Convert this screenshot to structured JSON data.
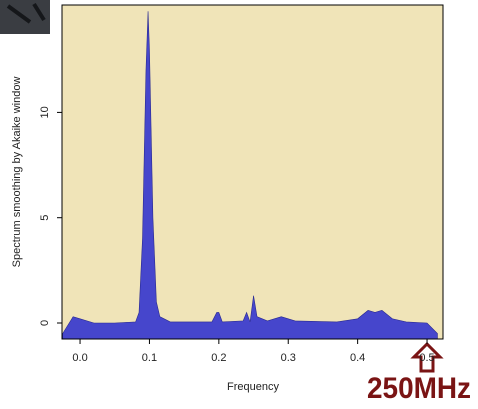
{
  "chart_data": {
    "type": "area",
    "y_label": "Spectrum smoothing by Akaike window",
    "x_label": "Frequency",
    "annotation": "250MHz",
    "color": "#4646cc",
    "background": "#f0e4b8",
    "x": [
      -0.025,
      -0.01,
      0.0,
      0.02,
      0.05,
      0.08,
      0.085,
      0.09,
      0.095,
      0.098,
      0.1,
      0.105,
      0.11,
      0.115,
      0.13,
      0.19,
      0.197,
      0.2,
      0.205,
      0.235,
      0.24,
      0.245,
      0.25,
      0.255,
      0.27,
      0.29,
      0.31,
      0.37,
      0.4,
      0.415,
      0.425,
      0.435,
      0.45,
      0.47,
      0.5,
      0.515
    ],
    "values": [
      -0.5,
      0.3,
      0.2,
      0.0,
      0.0,
      0.05,
      0.5,
      4,
      12,
      14.8,
      13,
      5,
      1,
      0.3,
      0.05,
      0.05,
      0.5,
      0.5,
      0.05,
      0.1,
      0.5,
      0.05,
      1.3,
      0.3,
      0.1,
      0.3,
      0.1,
      0.05,
      0.2,
      0.6,
      0.5,
      0.6,
      0.2,
      0.05,
      0.0,
      -0.5
    ],
    "xlim": [
      -0.026,
      0.523
    ],
    "ylim": [
      -0.76,
      15.1
    ],
    "xticks": [
      {
        "value": 0,
        "label": "0.0"
      },
      0.1,
      0.2,
      0.3,
      0.4,
      0.5
    ],
    "yticks": [
      0,
      5,
      10
    ]
  }
}
